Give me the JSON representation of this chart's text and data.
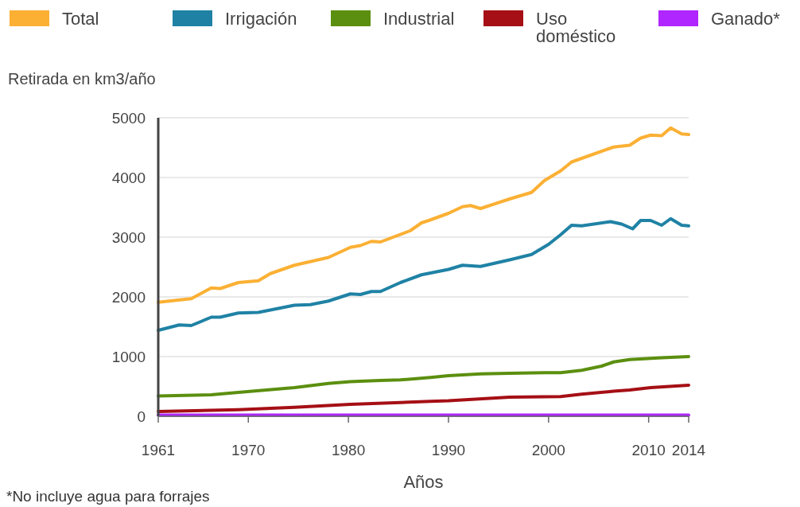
{
  "chart_data": {
    "type": "line",
    "ylabel": "Retirada en km3/año",
    "xlabel": "Años",
    "annotations": [
      "*No incluye agua para forrajes"
    ],
    "xlim": [
      1961,
      2014
    ],
    "xticks": [
      1961,
      1970,
      1980,
      1990,
      2000,
      2010,
      2014
    ],
    "ylim": [
      0,
      5000
    ],
    "yticks": [
      0,
      1000,
      2000,
      3000,
      4000,
      5000
    ],
    "grid": "y",
    "legend": "top",
    "line_style": "solid",
    "series": [
      {
        "name": "Total",
        "color": "#fbb034",
        "x": [
          1961,
          1964.3,
          1966.3,
          1967.2,
          1969,
          1971,
          1972.2,
          1974.6,
          1978,
          1980.2,
          1981.2,
          1982.3,
          1983.2,
          1986.2,
          1987.3,
          1988.2,
          1990,
          1991.4,
          1992.2,
          1993.2,
          1996.1,
          1998.3,
          1999.6,
          2001.2,
          2002.3,
          2003.3,
          2006.5,
          2008.1,
          2009.2,
          2010.2,
          2011.3,
          2012.2,
          2013.3,
          2014
        ],
        "values": [
          1910,
          1970,
          2150,
          2140,
          2240,
          2270,
          2390,
          2530,
          2660,
          2830,
          2860,
          2930,
          2920,
          3110,
          3240,
          3290,
          3400,
          3510,
          3530,
          3480,
          3640,
          3750,
          3950,
          4110,
          4260,
          4320,
          4510,
          4540,
          4660,
          4710,
          4700,
          4830,
          4730,
          4720
        ]
      },
      {
        "name": "Irrigación",
        "color": "#1f82a5",
        "x": [
          1961,
          1963.1,
          1964.3,
          1966.3,
          1967.2,
          1969,
          1971,
          1974.6,
          1976.2,
          1978,
          1980.2,
          1981.2,
          1982.3,
          1983.2,
          1985.2,
          1987.3,
          1990,
          1991.4,
          1993.2,
          1996.1,
          1998.3,
          2000,
          2001.2,
          2002.3,
          2003.3,
          2006.2,
          2007.3,
          2008.4,
          2009.2,
          2010.2,
          2011.3,
          2012.2,
          2013.3,
          2014
        ],
        "values": [
          1440,
          1530,
          1520,
          1660,
          1660,
          1730,
          1740,
          1860,
          1870,
          1930,
          2050,
          2040,
          2090,
          2090,
          2240,
          2370,
          2460,
          2530,
          2510,
          2620,
          2710,
          2880,
          3040,
          3200,
          3190,
          3260,
          3220,
          3140,
          3280,
          3280,
          3200,
          3310,
          3200,
          3190
        ]
      },
      {
        "name": "Industrial",
        "color": "#5b8f0f",
        "x": [
          1961,
          1966.3,
          1969,
          1974.6,
          1978,
          1980.2,
          1983.2,
          1985.2,
          1988.2,
          1990,
          1993.2,
          1996.1,
          1999.6,
          2001.2,
          2003.3,
          2005.3,
          2006.5,
          2008.1,
          2010.2,
          2011.3,
          2014
        ],
        "values": [
          340,
          360,
          400,
          480,
          550,
          580,
          600,
          610,
          650,
          680,
          710,
          720,
          730,
          730,
          770,
          840,
          910,
          950,
          970,
          980,
          1000
        ]
      },
      {
        "name": "Uso doméstico",
        "color": "#a50f15",
        "x": [
          1961,
          1969,
          1974.6,
          1980.2,
          1985.2,
          1988.2,
          1990,
          1996.1,
          2001.2,
          2003.3,
          2006.5,
          2008.1,
          2010.2,
          2014
        ],
        "values": [
          80,
          110,
          150,
          200,
          230,
          250,
          260,
          320,
          330,
          370,
          420,
          440,
          480,
          520
        ]
      },
      {
        "name": "Ganado*",
        "color": "#b026ff",
        "x": [
          1961,
          2014
        ],
        "values": [
          20,
          20
        ]
      }
    ]
  }
}
